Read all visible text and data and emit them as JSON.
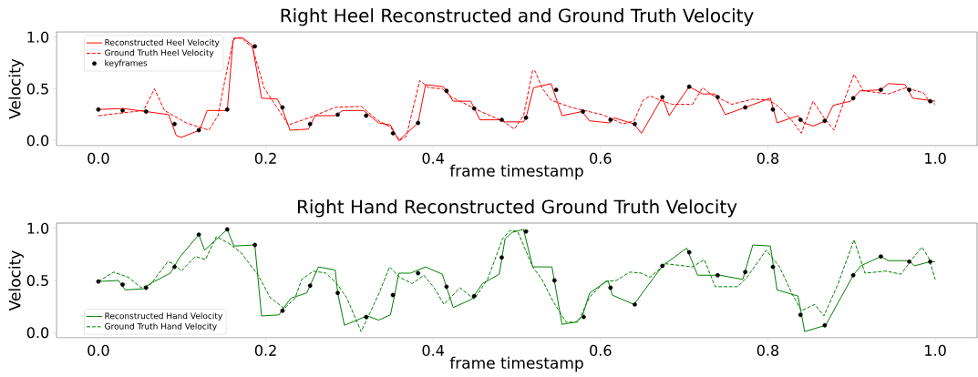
{
  "chart_data": [
    {
      "type": "line",
      "title": "Right Heel Reconstructed and Ground Truth Velocity",
      "xlabel": "frame timestamp",
      "ylabel": "Velocity",
      "xlim": [
        -0.05,
        1.05
      ],
      "ylim": [
        -0.05,
        1.05
      ],
      "xticks": [
        {
          "value": 0,
          "label": "0.0"
        },
        {
          "value": 0.2,
          "label": "0.2"
        },
        {
          "value": 0.4,
          "label": "0.4"
        },
        {
          "value": 0.6,
          "label": "0.6"
        },
        {
          "value": 0.8,
          "label": "0.8"
        },
        {
          "value": 1,
          "label": "1.0"
        }
      ],
      "yticks": [
        {
          "value": 0,
          "label": "0.0"
        },
        {
          "value": 0.5,
          "label": "0.5"
        },
        {
          "value": 1,
          "label": "1.0"
        }
      ],
      "legend": "top left",
      "series": [
        {
          "name": "Reconstructed Heel Velocity",
          "color": "#ff0000",
          "line_style": "solid",
          "x": [
            0,
            0.029,
            0.057,
            0.084,
            0.093,
            0.099,
            0.121,
            0.13,
            0.154,
            0.161,
            0.165,
            0.173,
            0.184,
            0.195,
            0.214,
            0.219,
            0.229,
            0.251,
            0.259,
            0.283,
            0.292,
            0.317,
            0.335,
            0.349,
            0.354,
            0.359,
            0.382,
            0.391,
            0.412,
            0.416,
            0.424,
            0.445,
            0.456,
            0.482,
            0.486,
            0.508,
            0.511,
            0.52,
            0.541,
            0.554,
            0.578,
            0.587,
            0.611,
            0.616,
            0.64,
            0.649,
            0.674,
            0.682,
            0.706,
            0.722,
            0.737,
            0.749,
            0.773,
            0.803,
            0.811,
            0.836,
            0.843,
            0.854,
            0.869,
            0.878,
            0.899,
            0.91,
            0.935,
            0.944,
            0.964,
            0.973,
            1.0
          ],
          "values": [
            0.3,
            0.31,
            0.28,
            0.25,
            0.05,
            0.03,
            0.1,
            0.29,
            0.29,
            0.97,
            0.99,
            0.99,
            0.92,
            0.41,
            0.4,
            0.32,
            0.1,
            0.11,
            0.24,
            0.24,
            0.29,
            0.29,
            0.17,
            0.15,
            0.07,
            0.0,
            0.17,
            0.54,
            0.52,
            0.48,
            0.38,
            0.38,
            0.2,
            0.2,
            0.18,
            0.18,
            0.22,
            0.51,
            0.55,
            0.24,
            0.28,
            0.19,
            0.17,
            0.22,
            0.16,
            0.07,
            0.42,
            0.24,
            0.52,
            0.45,
            0.45,
            0.25,
            0.32,
            0.41,
            0.17,
            0.24,
            0.17,
            0.14,
            0.19,
            0.34,
            0.38,
            0.48,
            0.49,
            0.55,
            0.54,
            0.41,
            0.38
          ]
        },
        {
          "name": "Ground Truth Heel Velocity",
          "color": "#ff0000",
          "line_style": "dashed",
          "x": [
            0,
            0.054,
            0.067,
            0.079,
            0.09,
            0.105,
            0.132,
            0.143,
            0.155,
            0.162,
            0.171,
            0.184,
            0.198,
            0.227,
            0.252,
            0.283,
            0.314,
            0.335,
            0.349,
            0.36,
            0.368,
            0.384,
            0.395,
            0.411,
            0.422,
            0.457,
            0.483,
            0.497,
            0.508,
            0.519,
            0.522,
            0.53,
            0.541,
            0.565,
            0.602,
            0.627,
            0.64,
            0.651,
            0.659,
            0.678,
            0.686,
            0.71,
            0.722,
            0.733,
            0.757,
            0.782,
            0.802,
            0.814,
            0.829,
            0.84,
            0.854,
            0.867,
            0.879,
            0.894,
            0.903,
            0.914,
            0.944,
            0.965,
            0.986,
            0.992,
            1.0
          ],
          "values": [
            0.24,
            0.29,
            0.5,
            0.29,
            0.24,
            0.17,
            0.1,
            0.24,
            0.74,
            0.99,
            0.99,
            0.9,
            0.51,
            0.15,
            0.22,
            0.32,
            0.33,
            0.19,
            0.13,
            0.0,
            0.04,
            0.58,
            0.51,
            0.5,
            0.42,
            0.28,
            0.19,
            0.11,
            0.24,
            0.68,
            0.67,
            0.51,
            0.39,
            0.32,
            0.25,
            0.16,
            0.19,
            0.39,
            0.43,
            0.37,
            0.35,
            0.35,
            0.51,
            0.44,
            0.35,
            0.4,
            0.39,
            0.32,
            0.19,
            0.07,
            0.38,
            0.22,
            0.1,
            0.45,
            0.64,
            0.48,
            0.45,
            0.51,
            0.46,
            0.39,
            0.35
          ]
        },
        {
          "name": "keyframes",
          "type": "scatter",
          "marker": "circle",
          "color": "#000000",
          "x": [
            0,
            0.029,
            0.057,
            0.091,
            0.12,
            0.154,
            0.187,
            0.22,
            0.253,
            0.286,
            0.32,
            0.352,
            0.382,
            0.416,
            0.449,
            0.482,
            0.511,
            0.547,
            0.579,
            0.612,
            0.641,
            0.674,
            0.706,
            0.74,
            0.773,
            0.806,
            0.839,
            0.868,
            0.902,
            0.935,
            0.969,
            0.994
          ],
          "values": [
            0.3,
            0.29,
            0.28,
            0.16,
            0.1,
            0.3,
            0.91,
            0.32,
            0.16,
            0.25,
            0.24,
            0.07,
            0.17,
            0.48,
            0.31,
            0.2,
            0.22,
            0.49,
            0.28,
            0.2,
            0.16,
            0.42,
            0.52,
            0.42,
            0.32,
            0.3,
            0.2,
            0.19,
            0.41,
            0.49,
            0.49,
            0.38
          ]
        }
      ]
    },
    {
      "type": "line",
      "title": "Right Hand Reconstructed Ground Truth Velocity",
      "xlabel": "frame timestamp",
      "ylabel": "Velocity",
      "xlim": [
        -0.05,
        1.05
      ],
      "ylim": [
        -0.05,
        1.05
      ],
      "xticks": [
        {
          "value": 0,
          "label": "0.0"
        },
        {
          "value": 0.2,
          "label": "0.2"
        },
        {
          "value": 0.4,
          "label": "0.4"
        },
        {
          "value": 0.6,
          "label": "0.6"
        },
        {
          "value": 0.8,
          "label": "0.8"
        },
        {
          "value": 1,
          "label": "1.0"
        }
      ],
      "yticks": [
        {
          "value": 0,
          "label": "0.0"
        },
        {
          "value": 0.5,
          "label": "0.5"
        },
        {
          "value": 1,
          "label": "1.0"
        }
      ],
      "legend": "bottom left",
      "series": [
        {
          "name": "Reconstructed Hand Velocity",
          "color": "#008000",
          "line_style": "solid",
          "x": [
            0,
            0.024,
            0.032,
            0.054,
            0.062,
            0.086,
            0.097,
            0.12,
            0.127,
            0.154,
            0.162,
            0.187,
            0.195,
            0.216,
            0.219,
            0.23,
            0.249,
            0.263,
            0.283,
            0.286,
            0.294,
            0.321,
            0.335,
            0.349,
            0.354,
            0.359,
            0.373,
            0.391,
            0.411,
            0.424,
            0.446,
            0.459,
            0.479,
            0.486,
            0.494,
            0.508,
            0.519,
            0.542,
            0.554,
            0.57,
            0.578,
            0.587,
            0.609,
            0.614,
            0.64,
            0.674,
            0.703,
            0.716,
            0.743,
            0.77,
            0.782,
            0.803,
            0.811,
            0.836,
            0.844,
            0.869,
            0.902,
            0.911,
            0.935,
            0.944,
            0.969,
            0.975,
            0.994,
            1.0
          ],
          "values": [
            0.49,
            0.5,
            0.41,
            0.42,
            0.47,
            0.57,
            0.72,
            0.94,
            0.79,
            0.99,
            0.83,
            0.84,
            0.16,
            0.17,
            0.21,
            0.33,
            0.38,
            0.63,
            0.6,
            0.38,
            0.07,
            0.16,
            0.12,
            0.17,
            0.36,
            0.57,
            0.57,
            0.63,
            0.56,
            0.24,
            0.32,
            0.47,
            0.56,
            0.9,
            0.96,
            0.99,
            0.63,
            0.63,
            0.08,
            0.1,
            0.15,
            0.38,
            0.5,
            0.36,
            0.27,
            0.64,
            0.81,
            0.55,
            0.55,
            0.51,
            0.84,
            0.83,
            0.41,
            0.35,
            0.01,
            0.07,
            0.55,
            0.64,
            0.73,
            0.69,
            0.69,
            0.64,
            0.68,
            0.68
          ]
        },
        {
          "name": "Ground Truth Hand Velocity",
          "color": "#008000",
          "line_style": "dashed",
          "x": [
            0,
            0.018,
            0.036,
            0.051,
            0.062,
            0.083,
            0.09,
            0.099,
            0.116,
            0.128,
            0.141,
            0.155,
            0.17,
            0.191,
            0.205,
            0.222,
            0.235,
            0.243,
            0.257,
            0.272,
            0.286,
            0.297,
            0.314,
            0.324,
            0.335,
            0.348,
            0.36,
            0.375,
            0.389,
            0.402,
            0.413,
            0.432,
            0.449,
            0.465,
            0.483,
            0.492,
            0.501,
            0.519,
            0.53,
            0.544,
            0.559,
            0.573,
            0.587,
            0.605,
            0.619,
            0.635,
            0.649,
            0.659,
            0.678,
            0.71,
            0.724,
            0.737,
            0.764,
            0.775,
            0.798,
            0.814,
            0.829,
            0.84,
            0.856,
            0.867,
            0.884,
            0.903,
            0.916,
            0.941,
            0.959,
            0.97,
            0.984,
            0.992,
            1.0
          ],
          "values": [
            0.49,
            0.58,
            0.53,
            0.43,
            0.46,
            0.68,
            0.66,
            0.59,
            0.73,
            0.7,
            0.92,
            0.86,
            0.77,
            0.55,
            0.34,
            0.23,
            0.33,
            0.51,
            0.59,
            0.57,
            0.46,
            0.33,
            0.01,
            0.18,
            0.37,
            0.63,
            0.53,
            0.47,
            0.55,
            0.42,
            0.27,
            0.43,
            0.32,
            0.51,
            0.9,
            0.98,
            0.97,
            0.63,
            0.51,
            0.29,
            0.1,
            0.1,
            0.34,
            0.49,
            0.5,
            0.58,
            0.57,
            0.53,
            0.66,
            0.63,
            0.7,
            0.44,
            0.44,
            0.53,
            0.79,
            0.63,
            0.37,
            0.21,
            0.27,
            0.16,
            0.47,
            0.89,
            0.57,
            0.59,
            0.56,
            0.68,
            0.82,
            0.72,
            0.51
          ]
        },
        {
          "type": "scatter",
          "marker": "circle",
          "color": "#000000",
          "x": [
            0,
            0.029,
            0.057,
            0.091,
            0.12,
            0.154,
            0.187,
            0.22,
            0.253,
            0.286,
            0.32,
            0.352,
            0.382,
            0.416,
            0.449,
            0.482,
            0.511,
            0.545,
            0.58,
            0.612,
            0.641,
            0.674,
            0.706,
            0.74,
            0.773,
            0.806,
            0.839,
            0.868,
            0.902,
            0.935,
            0.969,
            0.994
          ],
          "values": [
            0.49,
            0.46,
            0.43,
            0.63,
            0.94,
            0.99,
            0.84,
            0.21,
            0.45,
            0.38,
            0.15,
            0.36,
            0.57,
            0.44,
            0.35,
            0.72,
            0.97,
            0.5,
            0.15,
            0.43,
            0.27,
            0.64,
            0.77,
            0.55,
            0.58,
            0.63,
            0.17,
            0.07,
            0.55,
            0.73,
            0.68,
            0.68
          ]
        }
      ]
    }
  ]
}
